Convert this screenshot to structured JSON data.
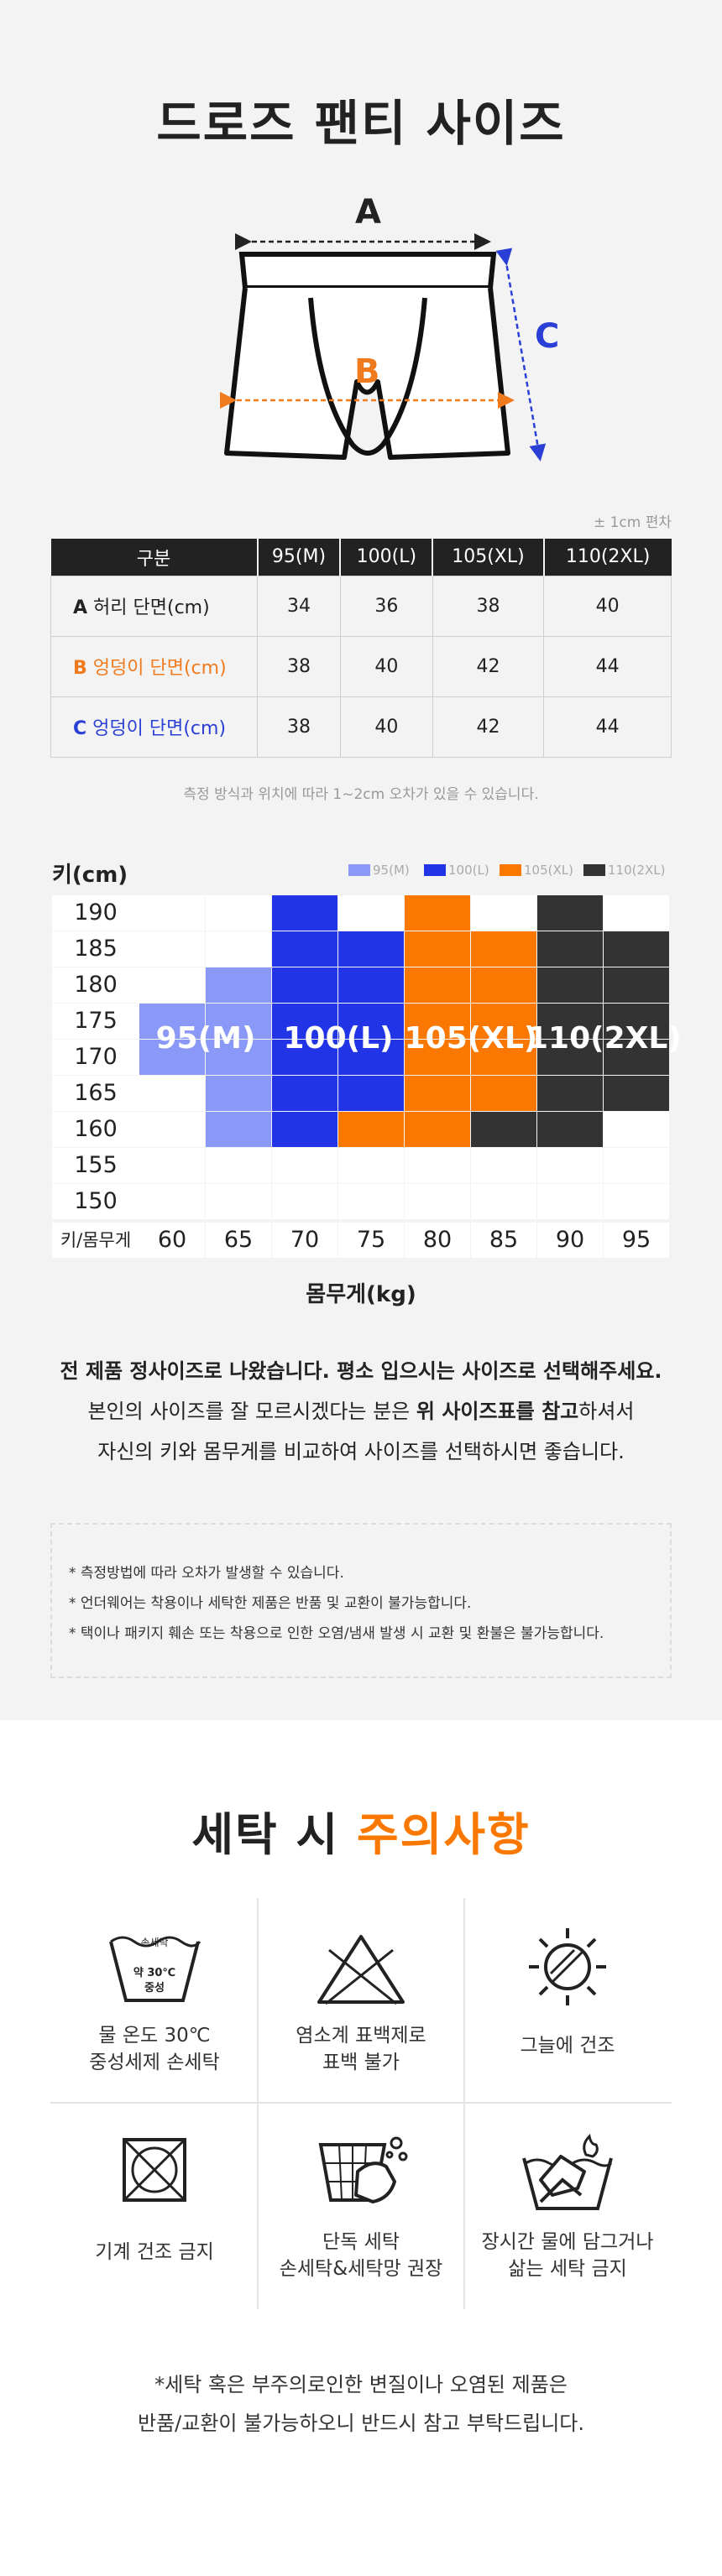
{
  "size_title": "드로즈 팬티 사이즈",
  "diagram": {
    "label_a": "A",
    "label_b": "B",
    "label_c": "C"
  },
  "tolerance": "± 1cm 편차",
  "size_table": {
    "headers": [
      "구분",
      "95(M)",
      "100(L)",
      "105(XL)",
      "110(2XL)"
    ],
    "rows": [
      {
        "letter": "A",
        "label": "허리 단면(cm)",
        "values": [
          "34",
          "36",
          "38",
          "40"
        ]
      },
      {
        "letter": "B",
        "label": "엉덩이 단면(cm)",
        "values": [
          "38",
          "40",
          "42",
          "44"
        ]
      },
      {
        "letter": "C",
        "label": "엉덩이 단면(cm)",
        "values": [
          "38",
          "40",
          "42",
          "44"
        ]
      }
    ]
  },
  "table_note": "측정 방식과 위치에 따라 1~2cm 오차가 있을 수 있습니다.",
  "chart_data": {
    "type": "heatmap",
    "ylabel": "키(cm)",
    "xlabel": "몸무게(kg)",
    "corner_label": "키/몸무게",
    "y_ticks": [
      "190",
      "185",
      "180",
      "175",
      "170",
      "165",
      "160",
      "155",
      "150"
    ],
    "x_ticks": [
      "60",
      "65",
      "70",
      "75",
      "80",
      "85",
      "90",
      "95"
    ],
    "legend": [
      "95(M)",
      "100(L)",
      "105(XL)",
      "110(2XL)"
    ],
    "colors": {
      "95(M)": "#8a99f7",
      "100(L)": "#2235e6",
      "105(XL)": "#fb7800",
      "110(2XL)": "#333333"
    },
    "grid": [
      {
        "height": "190",
        "sizes": [
          "",
          "",
          "100(L)",
          "",
          "105(XL)",
          "",
          "110(2XL)",
          ""
        ]
      },
      {
        "height": "185",
        "sizes": [
          "",
          "",
          "100(L)",
          "100(L)",
          "105(XL)",
          "105(XL)",
          "110(2XL)",
          "110(2XL)"
        ]
      },
      {
        "height": "180",
        "sizes": [
          "",
          "95(M)",
          "100(L)",
          "100(L)",
          "105(XL)",
          "105(XL)",
          "110(2XL)",
          "110(2XL)"
        ]
      },
      {
        "height": "175",
        "sizes": [
          "95(M)",
          "95(M)",
          "100(L)",
          "100(L)",
          "105(XL)",
          "105(XL)",
          "110(2XL)",
          "110(2XL)"
        ]
      },
      {
        "height": "170",
        "sizes": [
          "95(M)",
          "95(M)",
          "100(L)",
          "100(L)",
          "105(XL)",
          "105(XL)",
          "110(2XL)",
          "110(2XL)"
        ]
      },
      {
        "height": "165",
        "sizes": [
          "",
          "95(M)",
          "100(L)",
          "100(L)",
          "105(XL)",
          "105(XL)",
          "110(2XL)",
          "110(2XL)"
        ]
      },
      {
        "height": "160",
        "sizes": [
          "",
          "95(M)",
          "100(L)",
          "105(XL)",
          "105(XL)",
          "110(2XL)",
          "110(2XL)",
          ""
        ]
      },
      {
        "height": "155",
        "sizes": [
          "",
          "",
          "",
          "",
          "",
          "",
          "",
          ""
        ]
      },
      {
        "height": "150",
        "sizes": [
          "",
          "",
          "",
          "",
          "",
          "",
          "",
          ""
        ]
      }
    ],
    "size_labels": [
      "95(M)",
      "100(L)",
      "105(XL)",
      "110(2XL)"
    ]
  },
  "guide": {
    "line1": "전 제품 정사이즈로 나왔습니다. 평소 입으시는 사이즈로 선택해주세요.",
    "line2_a": "본인의 사이즈를 잘 모르시겠다는 분은 ",
    "line2_b": "위 사이즈표를 참고",
    "line2_c": "하셔서",
    "line3": "자신의 키와 몸무게를 비교하여 사이즈를 선택하시면 좋습니다."
  },
  "notes": [
    "* 측정방법에 따라 오차가 발생할 수 있습니다.",
    "* 언더웨어는 착용이나 세탁한 제품은 반품 및 교환이 불가능합니다.",
    "* 택이나 패키지 훼손 또는 착용으로 인한 오염/냄새 발생 시 교환 및 환불은 불가능합니다."
  ],
  "wash": {
    "title_a": "세탁 시 ",
    "title_b": "주의사항",
    "icon_text": {
      "top": "손세탁",
      "temp": "약 30℃",
      "mid": "중성"
    },
    "items": [
      {
        "icon": "hand-wash-30-icon",
        "line1": "물 온도 30℃",
        "line2": "중성세제 손세탁"
      },
      {
        "icon": "no-bleach-icon",
        "line1": "염소계 표백제로",
        "line2": "표백 불가"
      },
      {
        "icon": "shade-dry-icon",
        "line1": "그늘에 건조",
        "line2": ""
      },
      {
        "icon": "no-tumble-dry-icon",
        "line1": "기계 건조 금지",
        "line2": ""
      },
      {
        "icon": "separate-wash-net-icon",
        "line1": "단독 세탁",
        "line2": "손세탁&세탁망 권장"
      },
      {
        "icon": "no-soak-boil-icon",
        "line1": "장시간 물에 담그거나",
        "line2": "삶는 세탁 금지"
      }
    ],
    "footer1": "*세탁 혹은 부주의로인한 변질이나 오염된 제품은",
    "footer2": "반품/교환이 불가능하오니 반드시 참고 부탁드립니다."
  }
}
